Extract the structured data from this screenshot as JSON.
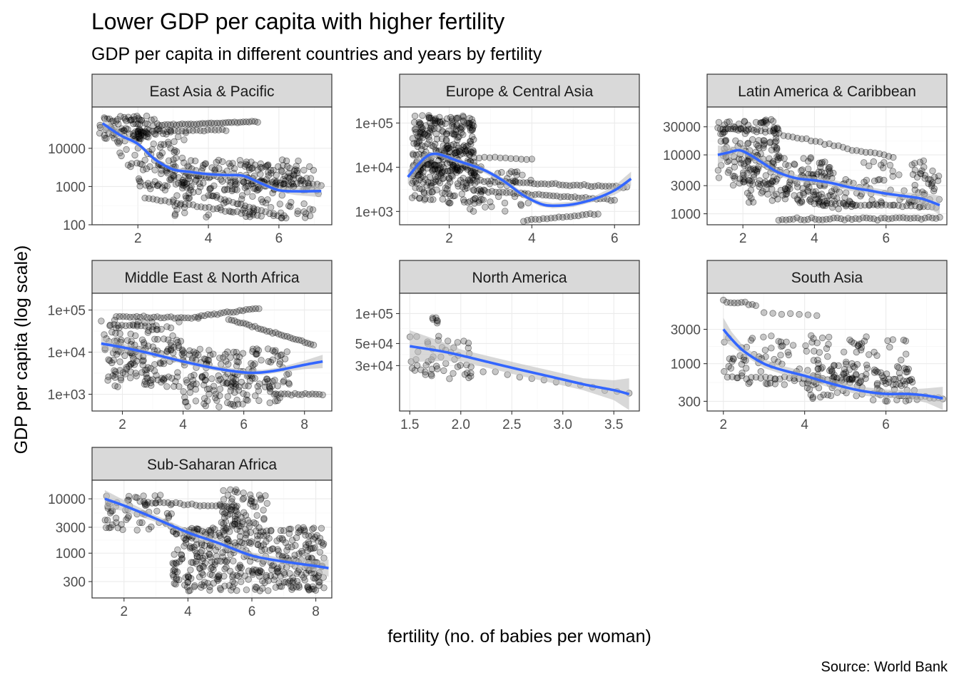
{
  "title": "Lower GDP per capita with higher fertility",
  "subtitle": "GDP per capita in different countries and years by fertility",
  "xlabel": "fertility (no. of babies per woman)",
  "ylabel": "GDP per capita (log scale)",
  "caption": "Source: World Bank",
  "colors": {
    "points": "#000000",
    "smooth": "#3366FF",
    "ribbon": "#bebebe",
    "strip": "#d9d9d9",
    "grid_major": "#ebebeb",
    "grid_minor": "#f5f5f5"
  },
  "chart_data": {
    "type": "scatter",
    "y_scale": "log10",
    "smooth": "loess",
    "panels": [
      {
        "name": "East Asia & Pacific",
        "xlim": [
          0.7,
          7.5
        ],
        "ylim": [
          100,
          120000
        ],
        "xticks": [
          {
            "v": 2,
            "label": "2"
          },
          {
            "v": 4,
            "label": "4"
          },
          {
            "v": 6,
            "label": "6"
          }
        ],
        "yticks": [
          {
            "v": 100,
            "label": "100"
          },
          {
            "v": 1000,
            "label": "1000"
          },
          {
            "v": 10000,
            "label": "10000"
          }
        ],
        "smooth_line": [
          [
            1,
            45000
          ],
          [
            1.5,
            22000
          ],
          [
            2,
            13000
          ],
          [
            2.5,
            5000
          ],
          [
            3,
            2800
          ],
          [
            3.5,
            2400
          ],
          [
            4,
            2100
          ],
          [
            4.5,
            2000
          ],
          [
            5,
            1900
          ],
          [
            5.5,
            1200
          ],
          [
            6,
            800
          ],
          [
            6.5,
            750
          ],
          [
            7.2,
            760
          ]
        ],
        "clusters": [
          {
            "x": [
              0.9,
              2.6
            ],
            "y": [
              15000,
              70000
            ],
            "n": 90
          },
          {
            "x": [
              1.4,
              3.5
            ],
            "y": [
              3000,
              30000
            ],
            "n": 55
          },
          {
            "x": [
              2,
              6.6
            ],
            "y": [
              800,
              5000
            ],
            "n": 160
          },
          {
            "x": [
              3,
              7.2
            ],
            "y": [
              150,
              1500
            ],
            "n": 90
          },
          {
            "x": [
              2.5,
              7
            ],
            "y": [
              1000,
              3500
            ],
            "n": 60
          }
        ],
        "lines": [
          {
            "x0": 2.6,
            "x1": 5.4,
            "y0": 40000,
            "y1": 50000,
            "n": 35
          },
          {
            "x0": 2,
            "x1": 4.5,
            "y0": 28000,
            "y1": 30000,
            "n": 25
          },
          {
            "x0": 2.2,
            "x1": 5.5,
            "y0": 500,
            "y1": 170,
            "n": 30
          },
          {
            "x0": 4,
            "x1": 6.2,
            "y0": 600,
            "y1": 150,
            "n": 20
          },
          {
            "x0": 5,
            "x1": 7.2,
            "y0": 1400,
            "y1": 1100,
            "n": 20
          }
        ]
      },
      {
        "name": "Europe & Central Asia",
        "xlim": [
          0.8,
          6.6
        ],
        "ylim": [
          500,
          230000
        ],
        "xticks": [
          {
            "v": 2,
            "label": "2"
          },
          {
            "v": 4,
            "label": "4"
          },
          {
            "v": 6,
            "label": "6"
          }
        ],
        "yticks": [
          {
            "v": 1000,
            "label": "1e+03"
          },
          {
            "v": 10000,
            "label": "1e+04"
          },
          {
            "v": 100000,
            "label": "1e+05"
          }
        ],
        "smooth_line": [
          [
            1.0,
            6000
          ],
          [
            1.4,
            16000
          ],
          [
            1.7,
            20000
          ],
          [
            2.2,
            14000
          ],
          [
            2.8,
            9000
          ],
          [
            3.3,
            5000
          ],
          [
            3.8,
            2300
          ],
          [
            4.2,
            1500
          ],
          [
            4.5,
            1350
          ],
          [
            5,
            1450
          ],
          [
            5.5,
            1900
          ],
          [
            6,
            3000
          ],
          [
            6.4,
            5500
          ]
        ],
        "clusters": [
          {
            "x": [
              1.1,
              2.6
            ],
            "y": [
              8000,
              150000
            ],
            "n": 260
          },
          {
            "x": [
              1.1,
              2.8
            ],
            "y": [
              1500,
              15000
            ],
            "n": 140
          },
          {
            "x": [
              2.5,
              4
            ],
            "y": [
              1000,
              8000
            ],
            "n": 40
          }
        ],
        "lines": [
          {
            "x0": 2.5,
            "x1": 6.3,
            "y0": 5000,
            "y1": 3500,
            "n": 45
          },
          {
            "x0": 2.6,
            "x1": 6,
            "y0": 3000,
            "y1": 1800,
            "n": 40
          },
          {
            "x0": 3.8,
            "x1": 5.6,
            "y0": 600,
            "y1": 900,
            "n": 20
          },
          {
            "x0": 2.6,
            "x1": 4,
            "y0": 17000,
            "y1": 15000,
            "n": 12
          }
        ]
      },
      {
        "name": "Latin America & Caribbean",
        "xlim": [
          1,
          7.7
        ],
        "ylim": [
          650,
          65000
        ],
        "xticks": [
          {
            "v": 2,
            "label": "2"
          },
          {
            "v": 4,
            "label": "4"
          },
          {
            "v": 6,
            "label": "6"
          }
        ],
        "yticks": [
          {
            "v": 1000,
            "label": "1000"
          },
          {
            "v": 3000,
            "label": "3000"
          },
          {
            "v": 10000,
            "label": "10000"
          },
          {
            "v": 30000,
            "label": "30000"
          }
        ],
        "smooth_line": [
          [
            1.3,
            10000
          ],
          [
            1.6,
            11000
          ],
          [
            1.9,
            12000
          ],
          [
            2.2,
            10000
          ],
          [
            2.6,
            7000
          ],
          [
            3,
            5000
          ],
          [
            3.5,
            4000
          ],
          [
            4,
            3700
          ],
          [
            4.5,
            3300
          ],
          [
            5,
            2800
          ],
          [
            5.5,
            2500
          ],
          [
            6,
            2200
          ],
          [
            6.5,
            2000
          ],
          [
            7,
            1800
          ],
          [
            7.5,
            1400
          ]
        ],
        "clusters": [
          {
            "x": [
              1.3,
              3
            ],
            "y": [
              3000,
              40000
            ],
            "n": 140
          },
          {
            "x": [
              2,
              4.5
            ],
            "y": [
              1500,
              10000
            ],
            "n": 130
          },
          {
            "x": [
              3.5,
              7.5
            ],
            "y": [
              1200,
              8000
            ],
            "n": 130
          }
        ],
        "lines": [
          {
            "x0": 1.3,
            "x1": 2.3,
            "y0": 28000,
            "y1": 27000,
            "n": 15
          },
          {
            "x0": 2.5,
            "x1": 6.2,
            "y0": 26000,
            "y1": 9000,
            "n": 30
          },
          {
            "x0": 3,
            "x1": 7.5,
            "y0": 800,
            "y1": 850,
            "n": 45
          },
          {
            "x0": 4,
            "x1": 7.4,
            "y0": 1500,
            "y1": 1300,
            "n": 30
          }
        ]
      },
      {
        "name": "Middle East & North Africa",
        "xlim": [
          1,
          8.9
        ],
        "ylim": [
          400,
          250000
        ],
        "xticks": [
          {
            "v": 2,
            "label": "2"
          },
          {
            "v": 4,
            "label": "4"
          },
          {
            "v": 6,
            "label": "6"
          },
          {
            "v": 8,
            "label": "8"
          }
        ],
        "yticks": [
          {
            "v": 1000,
            "label": "1e+03"
          },
          {
            "v": 10000,
            "label": "1e+04"
          },
          {
            "v": 100000,
            "label": "1e+05"
          }
        ],
        "smooth_line": [
          [
            1.3,
            16000
          ],
          [
            2,
            13000
          ],
          [
            3,
            9000
          ],
          [
            4,
            6000
          ],
          [
            5,
            4200
          ],
          [
            6,
            3300
          ],
          [
            6.6,
            3300
          ],
          [
            7.2,
            3800
          ],
          [
            8,
            5000
          ],
          [
            8.6,
            6000
          ]
        ],
        "clusters": [
          {
            "x": [
              1.3,
              4
            ],
            "y": [
              10000,
              60000
            ],
            "n": 70
          },
          {
            "x": [
              1.5,
              7.5
            ],
            "y": [
              1500,
              12000
            ],
            "n": 220
          },
          {
            "x": [
              4,
              7.5
            ],
            "y": [
              500,
              3000
            ],
            "n": 70
          }
        ],
        "lines": [
          {
            "x0": 1.8,
            "x1": 4.5,
            "y0": 70000,
            "y1": 65000,
            "n": 25
          },
          {
            "x0": 4.5,
            "x1": 6.5,
            "y0": 70000,
            "y1": 110000,
            "n": 20
          },
          {
            "x0": 5.5,
            "x1": 8.3,
            "y0": 60000,
            "y1": 15000,
            "n": 30
          },
          {
            "x0": 7,
            "x1": 8.6,
            "y0": 1000,
            "y1": 1000,
            "n": 15
          },
          {
            "x0": 1.6,
            "x1": 3,
            "y0": 45000,
            "y1": 40000,
            "n": 12
          }
        ]
      },
      {
        "name": "North America",
        "xlim": [
          1.4,
          3.75
        ],
        "ylim": [
          10500,
          160000
        ],
        "xticks": [
          {
            "v": 1.5,
            "label": "1.5"
          },
          {
            "v": 2.0,
            "label": "2.0"
          },
          {
            "v": 2.5,
            "label": "2.5"
          },
          {
            "v": 3.0,
            "label": "3.0"
          },
          {
            "v": 3.5,
            "label": "3.5"
          }
        ],
        "yticks": [
          {
            "v": 30000,
            "label": "3e+04"
          },
          {
            "v": 50000,
            "label": "5e+04"
          },
          {
            "v": 100000,
            "label": "1e+05"
          }
        ],
        "smooth_line": [
          [
            1.5,
            47000
          ],
          [
            1.8,
            42000
          ],
          [
            2.0,
            38000
          ],
          [
            2.3,
            32000
          ],
          [
            2.6,
            27000
          ],
          [
            2.9,
            23000
          ],
          [
            3.2,
            19500
          ],
          [
            3.5,
            17000
          ],
          [
            3.65,
            15500
          ]
        ],
        "clusters": [
          {
            "x": [
              1.5,
              2.1
            ],
            "y": [
              22000,
              60000
            ],
            "n": 50
          },
          {
            "x": [
              1.72,
              1.8
            ],
            "y": [
              80000,
              95000
            ],
            "n": 6
          }
        ],
        "lines": [
          {
            "x0": 2.1,
            "x1": 3.65,
            "y0": 28000,
            "y1": 15500,
            "n": 14
          }
        ]
      },
      {
        "name": "South Asia",
        "xlim": [
          1.6,
          7.5
        ],
        "ylim": [
          220,
          9500
        ],
        "xticks": [
          {
            "v": 2,
            "label": "2"
          },
          {
            "v": 4,
            "label": "4"
          },
          {
            "v": 6,
            "label": "6"
          }
        ],
        "yticks": [
          {
            "v": 300,
            "label": "300"
          },
          {
            "v": 1000,
            "label": "1000"
          },
          {
            "v": 3000,
            "label": "3000"
          }
        ],
        "smooth_line": [
          [
            2,
            3000
          ],
          [
            2.2,
            2200
          ],
          [
            2.5,
            1500
          ],
          [
            3,
            1000
          ],
          [
            3.5,
            800
          ],
          [
            4,
            680
          ],
          [
            4.5,
            560
          ],
          [
            5,
            470
          ],
          [
            5.5,
            410
          ],
          [
            6,
            380
          ],
          [
            6.5,
            380
          ],
          [
            7,
            360
          ],
          [
            7.4,
            330
          ]
        ],
        "clusters": [
          {
            "x": [
              2,
              6.5
            ],
            "y": [
              500,
              2500
            ],
            "n": 140
          },
          {
            "x": [
              4,
              6.8
            ],
            "y": [
              300,
              900
            ],
            "n": 90
          }
        ],
        "lines": [
          {
            "x0": 2,
            "x1": 2.8,
            "y0": 7500,
            "y1": 6500,
            "n": 10
          },
          {
            "x0": 3,
            "x1": 4.3,
            "y0": 5000,
            "y1": 4700,
            "n": 7
          },
          {
            "x0": 2.1,
            "x1": 5.5,
            "y0": 650,
            "y1": 600,
            "n": 30
          },
          {
            "x0": 6,
            "x1": 7.4,
            "y0": 380,
            "y1": 330,
            "n": 14
          }
        ]
      },
      {
        "name": "Sub-Saharan Africa",
        "xlim": [
          1,
          8.5
        ],
        "ylim": [
          150,
          22000
        ],
        "xticks": [
          {
            "v": 2,
            "label": "2"
          },
          {
            "v": 4,
            "label": "4"
          },
          {
            "v": 6,
            "label": "6"
          },
          {
            "v": 8,
            "label": "8"
          }
        ],
        "yticks": [
          {
            "v": 300,
            "label": "300"
          },
          {
            "v": 1000,
            "label": "1000"
          },
          {
            "v": 3000,
            "label": "3000"
          },
          {
            "v": 10000,
            "label": "10000"
          }
        ],
        "smooth_line": [
          [
            1.4,
            10000
          ],
          [
            2,
            7500
          ],
          [
            3,
            4300
          ],
          [
            4,
            2400
          ],
          [
            5,
            1500
          ],
          [
            6,
            900
          ],
          [
            7,
            700
          ],
          [
            8,
            580
          ],
          [
            8.4,
            530
          ]
        ],
        "clusters": [
          {
            "x": [
              1.4,
              3.5
            ],
            "y": [
              2500,
              12000
            ],
            "n": 60
          },
          {
            "x": [
              3.5,
              8.3
            ],
            "y": [
              200,
              3000
            ],
            "n": 420
          },
          {
            "x": [
              5,
              6.5
            ],
            "y": [
              3000,
              15000
            ],
            "n": 70
          }
        ],
        "lines": [
          {
            "x0": 2.5,
            "x1": 5.5,
            "y0": 9000,
            "y1": 7000,
            "n": 25
          }
        ]
      }
    ]
  }
}
